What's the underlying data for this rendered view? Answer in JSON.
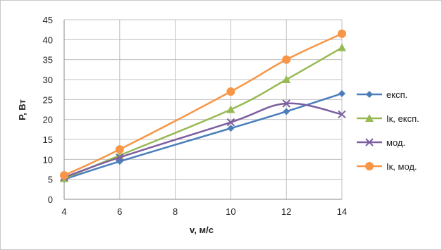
{
  "chart_data": {
    "type": "line",
    "xlabel": "v, м/с",
    "ylabel": "P, Вт",
    "x": [
      4,
      6,
      10,
      12,
      14
    ],
    "xlim": [
      4,
      14
    ],
    "xticks": [
      4,
      6,
      8,
      10,
      12,
      14
    ],
    "ylim": [
      0,
      45
    ],
    "yticks": [
      0,
      5,
      10,
      15,
      20,
      25,
      30,
      35,
      40,
      45
    ],
    "grid": true,
    "legend_position": "right",
    "series": [
      {
        "name": "експ.",
        "color": "#4a7ebb",
        "marker": "diamond",
        "values": [
          5.0,
          9.5,
          17.8,
          22.0,
          26.5
        ]
      },
      {
        "name": "Ік, експ.",
        "color": "#98b954",
        "marker": "triangle",
        "values": [
          5.2,
          11.0,
          22.5,
          30.0,
          38.0
        ]
      },
      {
        "name": "мод.",
        "color": "#7d5fa0",
        "marker": "x",
        "values": [
          5.5,
          10.5,
          19.3,
          24.0,
          21.3
        ]
      },
      {
        "name": "Ік, мод.",
        "color": "#f79646",
        "marker": "circle",
        "values": [
          6.0,
          12.5,
          27.0,
          35.0,
          41.5
        ]
      }
    ]
  }
}
